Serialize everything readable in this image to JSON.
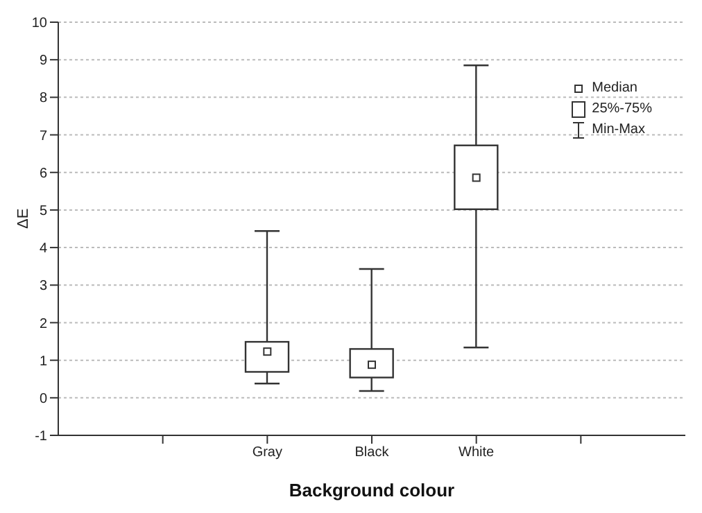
{
  "chart_data": {
    "type": "box",
    "categories": [
      null,
      "Gray",
      "Black",
      "White",
      null
    ],
    "boxes": [
      null,
      {
        "low": 0.38,
        "q1": 0.69,
        "median": 1.23,
        "q3": 1.49,
        "high": 4.44
      },
      {
        "low": 0.18,
        "q1": 0.54,
        "median": 0.88,
        "q3": 1.3,
        "high": 3.43
      },
      {
        "low": 1.34,
        "q1": 5.02,
        "median": 5.86,
        "q3": 6.72,
        "high": 8.85
      },
      null
    ],
    "color": "#333333",
    "xlabel": "Background colour",
    "ylabel": "ΔE",
    "ylim": [
      -1,
      10
    ],
    "yticks": [
      -1,
      0,
      1,
      2,
      3,
      4,
      5,
      6,
      7,
      8,
      9,
      10
    ],
    "grid": "y",
    "annotations": [
      "Median",
      "25%-75%",
      "Min-Max"
    ]
  }
}
